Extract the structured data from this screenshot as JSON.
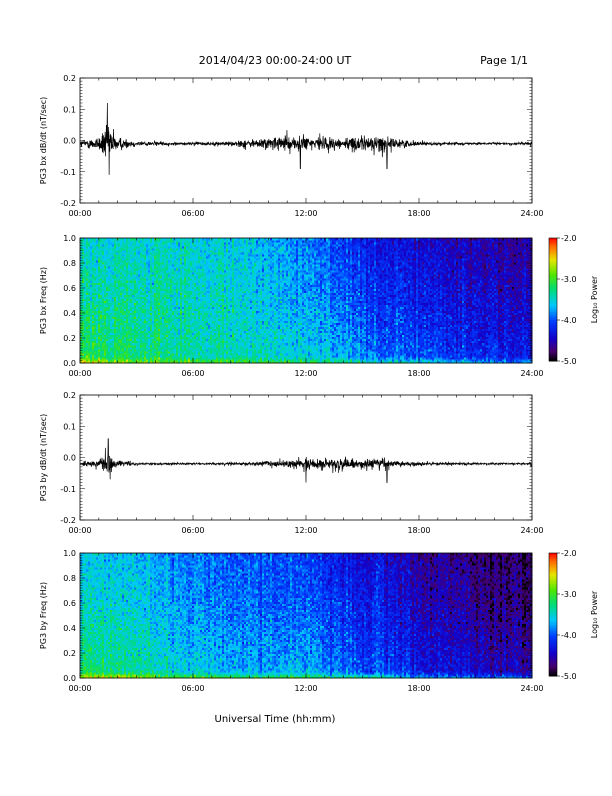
{
  "header": {
    "title": "2014/04/23  00:00-24:00 UT",
    "page": "Page 1/1"
  },
  "xaxis_title": "Universal Time (hh:mm)",
  "x_tick_labels": [
    "00:00",
    "06:00",
    "12:00",
    "18:00",
    "24:00"
  ],
  "colorbar": {
    "label": "Log₁₀ Power",
    "range": [
      -5.0,
      -2.0
    ],
    "tick_labels": [
      "-2.0",
      "-3.0",
      "-4.0",
      "-5.0"
    ]
  },
  "chart_data": [
    {
      "type": "line",
      "title": "",
      "ylabel": "PG3 bx dB/dt (nT/sec)",
      "xlim": [
        0,
        24
      ],
      "ylim": [
        -0.2,
        0.2
      ],
      "y_tick_labels": [
        "0.2",
        "0.1",
        "0.0",
        "-0.1",
        "-0.2"
      ],
      "baseline": -0.01,
      "envelope": {
        "hours": [
          0,
          1.0,
          1.4,
          1.6,
          2.0,
          3.0,
          5.0,
          7.0,
          8.0,
          9.5,
          10.5,
          11.5,
          12.0,
          13.0,
          14.0,
          15.0,
          16.0,
          16.5,
          17.0,
          17.5,
          18.0,
          19.0,
          21.0,
          23.0,
          23.8,
          24.0
        ],
        "amplitude": [
          0.02,
          0.04,
          0.12,
          0.1,
          0.04,
          0.015,
          0.008,
          0.01,
          0.015,
          0.03,
          0.04,
          0.05,
          0.045,
          0.04,
          0.035,
          0.045,
          0.05,
          0.03,
          0.025,
          0.02,
          0.012,
          0.008,
          0.006,
          0.006,
          0.01,
          0.012
        ]
      },
      "notable_peaks": [
        {
          "hour": 1.45,
          "value": 0.12
        },
        {
          "hour": 1.55,
          "value": -0.11
        },
        {
          "hour": 11.7,
          "value": -0.09
        },
        {
          "hour": 16.3,
          "value": -0.09
        }
      ]
    },
    {
      "type": "heatmap",
      "title": "",
      "ylabel": "PG3 bx Freq (Hz)",
      "xlim": [
        0,
        24
      ],
      "ylim": [
        0.0,
        1.0
      ],
      "y_tick_labels": [
        "1.0",
        "0.8",
        "0.6",
        "0.4",
        "0.2",
        "0.0"
      ],
      "z_label": "Log₁₀ Power",
      "z_range": [
        -5.0,
        -2.0
      ],
      "power_profile": {
        "hours": [
          0,
          3,
          6,
          9,
          12,
          14,
          16,
          18,
          20,
          22,
          24
        ],
        "low_f": [
          -3.0,
          -3.2,
          -3.3,
          -3.4,
          -3.5,
          -3.6,
          -3.8,
          -3.9,
          -4.0,
          -4.1,
          -4.2
        ],
        "high_f": [
          -3.5,
          -3.5,
          -3.5,
          -3.6,
          -3.9,
          -4.1,
          -4.3,
          -4.4,
          -4.5,
          -4.6,
          -4.6
        ]
      },
      "low_freq_band": {
        "max_hz": 0.05,
        "boost": 0.5
      }
    },
    {
      "type": "line",
      "title": "",
      "ylabel": "PG3 by dB/dt (nT/sec)",
      "xlim": [
        0,
        24
      ],
      "ylim": [
        -0.2,
        0.2
      ],
      "y_tick_labels": [
        "0.2",
        "0.1",
        "0.0",
        "-0.1",
        "-0.2"
      ],
      "baseline": -0.02,
      "envelope": {
        "hours": [
          0,
          1.0,
          1.4,
          1.6,
          2.0,
          3.0,
          5.0,
          7.0,
          9.0,
          10.5,
          11.5,
          12.0,
          13.0,
          14.0,
          15.0,
          16.0,
          16.5,
          17.0,
          17.5,
          18.0,
          19.0,
          21.0,
          23.0,
          23.8,
          24.0
        ],
        "amplitude": [
          0.01,
          0.02,
          0.06,
          0.05,
          0.02,
          0.008,
          0.005,
          0.005,
          0.01,
          0.02,
          0.03,
          0.035,
          0.03,
          0.03,
          0.025,
          0.03,
          0.02,
          0.015,
          0.012,
          0.01,
          0.008,
          0.006,
          0.006,
          0.008,
          0.03
        ]
      },
      "notable_peaks": [
        {
          "hour": 1.5,
          "value": 0.06
        },
        {
          "hour": 1.6,
          "value": -0.07
        },
        {
          "hour": 12.0,
          "value": -0.08
        },
        {
          "hour": 16.3,
          "value": -0.08
        },
        {
          "hour": 24.0,
          "value": 0.04
        }
      ]
    },
    {
      "type": "heatmap",
      "title": "",
      "ylabel": "PG3 by Freq (Hz)",
      "xlim": [
        0,
        24
      ],
      "ylim": [
        0.0,
        1.0
      ],
      "y_tick_labels": [
        "1.0",
        "0.8",
        "0.6",
        "0.4",
        "0.2",
        "0.0"
      ],
      "z_label": "Log₁₀ Power",
      "z_range": [
        -5.0,
        -2.0
      ],
      "power_profile": {
        "hours": [
          0,
          3,
          6,
          9,
          12,
          14,
          16,
          18,
          20,
          22,
          24
        ],
        "low_f": [
          -3.1,
          -3.3,
          -3.5,
          -3.7,
          -3.6,
          -3.8,
          -4.0,
          -4.2,
          -4.3,
          -4.4,
          -4.5
        ],
        "high_f": [
          -3.6,
          -3.7,
          -3.9,
          -4.0,
          -4.1,
          -4.3,
          -4.4,
          -4.6,
          -4.7,
          -4.8,
          -4.8
        ]
      },
      "low_freq_band": {
        "max_hz": 0.05,
        "boost": 0.7
      }
    }
  ]
}
